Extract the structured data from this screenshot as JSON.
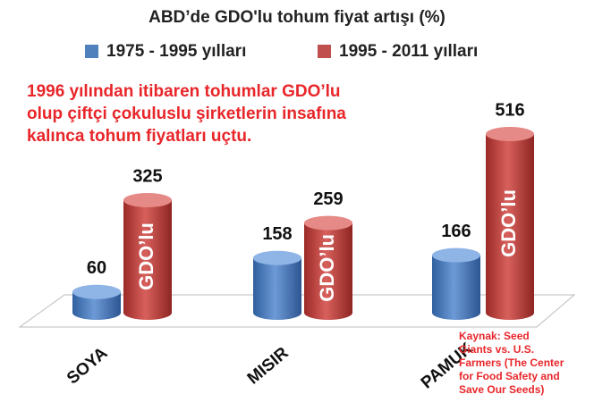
{
  "chart_data": {
    "type": "bar",
    "title": "ABD’de GDO'lu tohum fiyat artışı (%)",
    "categories": [
      "SOYA",
      "MISIR",
      "PAMUK"
    ],
    "series": [
      {
        "name": "1975 - 1995 yılları",
        "color": "#4f81bd",
        "values": [
          60,
          158,
          166
        ]
      },
      {
        "name": "1995 - 2011 yılları",
        "color": "#c0504d",
        "values": [
          325,
          259,
          516
        ]
      }
    ],
    "bar_annotation": "GDO’lu",
    "annotation": [
      "1996 yılından itibaren tohumlar GDO’lu",
      "olup çiftçi çokuluslu şirketlerin insafına",
      "kalınca tohum fiyatları uçtu."
    ],
    "source": [
      "Kaynak: Seed",
      "Giants vs. U.S.",
      "Farmers (The Center",
      "for Food Safety and",
      "Save Our Seeds)"
    ],
    "legend": "top"
  }
}
